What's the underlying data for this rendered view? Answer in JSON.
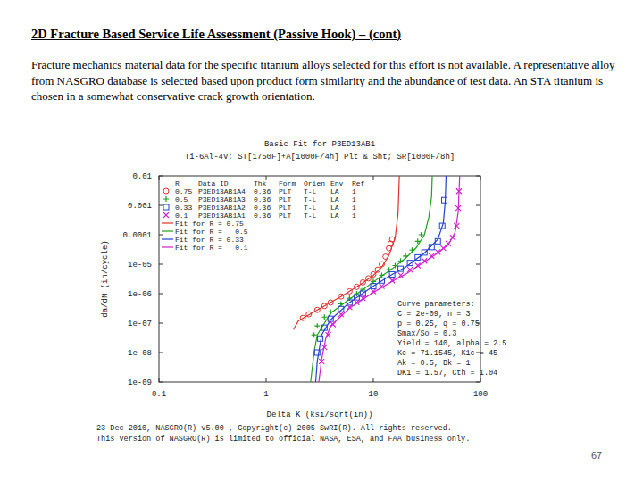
{
  "slide": {
    "heading": "2D Fracture Based Service Life Assessment (Passive Hook) – (cont)",
    "paragraph": "Fracture mechanics material data for the specific titanium alloys selected for this effort is not available.  A representative alloy from NASGRO database is selected based upon product form similarity and the abundance of test data.  An STA titanium is chosen in a somewhat conservative crack growth orientation.",
    "page_number": 67
  },
  "chart_data": {
    "type": "scatter",
    "title": "Basic Fit for P3ED13AB1",
    "subtitle": "Ti-6Al-4V; ST[1750F]+A[1000F/4h] Plt & Sht; SR[1000F/8h]",
    "x_label": "Delta K (ksi/sqrt(in))",
    "y_label": "da/dN (in/cycle)",
    "log": true,
    "grid": false,
    "legend": "upper left",
    "xlim": [
      0.1,
      100
    ],
    "ylim": [
      1e-09,
      0.01
    ],
    "xticks": [
      0.1,
      1,
      10,
      100
    ],
    "yticks": [
      0.01,
      0.001,
      0.0001,
      {
        "value": 1e-05,
        "label": "1e-05"
      },
      {
        "value": 1e-06,
        "label": "1e-06"
      },
      {
        "value": 1e-07,
        "label": "1e-07"
      },
      {
        "value": 1e-08,
        "label": "1e-08"
      },
      {
        "value": 1e-09,
        "label": "1e-09"
      }
    ],
    "legend_header": [
      "R",
      "Data ID",
      "Thk",
      "Form",
      "Orien",
      "Env",
      "Ref"
    ],
    "series": [
      {
        "name": "0.75",
        "legend_cells": [
          "P3ED13AB1A4",
          "0.36",
          "PLT",
          "T-L",
          "LA",
          "1"
        ],
        "type": "scatter",
        "marker": "circle",
        "color": "#e03030",
        "x": [
          2.2,
          2.5,
          3,
          3.5,
          4,
          5,
          6,
          7,
          8,
          9,
          10,
          11,
          12,
          13,
          14,
          14.5,
          15
        ],
        "values": [
          1.5e-07,
          2e-07,
          2.8e-07,
          3.8e-07,
          5e-07,
          8e-07,
          1.2e-06,
          1.7e-06,
          2.4e-06,
          3.3e-06,
          4.5e-06,
          6.5e-06,
          1e-05,
          1.8e-05,
          3.5e-05,
          5e-05,
          7e-05
        ]
      },
      {
        "name": "0.5",
        "legend_cells": [
          "P3ED13AB1A3",
          "0.36",
          "PLT",
          "T-L",
          "LA",
          "1"
        ],
        "type": "scatter",
        "marker": "plus",
        "color": "#20a020",
        "x": [
          2.8,
          3,
          3.5,
          4,
          5,
          6,
          7,
          8,
          10,
          12,
          14,
          16,
          18,
          20,
          23,
          26,
          28
        ],
        "values": [
          4e-08,
          8e-08,
          1.6e-07,
          2.4e-07,
          4.5e-07,
          7e-07,
          1e-06,
          1.4e-06,
          2.6e-06,
          4.2e-06,
          6.5e-06,
          9e-06,
          1.3e-05,
          1.9e-05,
          3e-05,
          6e-05,
          0.0001
        ]
      },
      {
        "name": "0.33",
        "legend_cells": [
          "P3ED13AB1A2",
          "0.36",
          "PLT",
          "T-L",
          "LA",
          "1"
        ],
        "type": "scatter",
        "marker": "square",
        "color": "#2040d0",
        "x": [
          3,
          3.2,
          3.5,
          4,
          5,
          6,
          7,
          8,
          10,
          12,
          15,
          18,
          22,
          26,
          30,
          35,
          40,
          44,
          46
        ],
        "values": [
          1e-08,
          3e-08,
          7e-08,
          1.4e-07,
          3e-07,
          5e-07,
          7.5e-07,
          1e-06,
          1.8e-06,
          2.8e-06,
          4.5e-06,
          7e-06,
          1.1e-05,
          1.7e-05,
          2.5e-05,
          3.8e-05,
          6e-05,
          0.0002,
          0.0015
        ]
      },
      {
        "name": "0.1",
        "legend_cells": [
          "P3ED13AB1A1",
          "0.36",
          "PLT",
          "T-L",
          "LA",
          "1"
        ],
        "type": "scatter",
        "marker": "x",
        "color": "#d020d0",
        "x": [
          3.3,
          3.5,
          3.8,
          4.2,
          5,
          6,
          7,
          8,
          10,
          12,
          15,
          18,
          22,
          26,
          30,
          35,
          40,
          45,
          50,
          55,
          60,
          62,
          63
        ],
        "values": [
          5e-09,
          1.5e-08,
          4e-08,
          9e-08,
          2e-07,
          3.5e-07,
          5e-07,
          7e-07,
          1.2e-06,
          1.8e-06,
          2.8e-06,
          4.2e-06,
          6.5e-06,
          9e-06,
          1.3e-05,
          1.9e-05,
          2.6e-05,
          3.5e-05,
          5e-05,
          8e-05,
          0.0002,
          0.0008,
          0.003
        ]
      },
      {
        "name": "Fit for R = 0.75",
        "type": "line",
        "line_style": "solid",
        "color": "#e03030",
        "x": [
          1.8,
          2,
          3,
          5,
          8,
          10,
          12,
          14,
          16,
          17,
          17.5
        ],
        "values": [
          6e-08,
          1.2e-07,
          2.8e-07,
          8e-07,
          2.3e-06,
          4.2e-06,
          8e-06,
          2e-05,
          8e-05,
          0.0005,
          0.01
        ]
      },
      {
        "name": "Fit for R =   0.5",
        "type": "line",
        "line_style": "solid",
        "color": "#20a020",
        "x": [
          2.6,
          2.8,
          3,
          4,
          6,
          10,
          15,
          20,
          25,
          30,
          33,
          35,
          35.5
        ],
        "values": [
          1e-09,
          1e-08,
          4e-08,
          2.2e-07,
          6.5e-07,
          2.5e-06,
          7e-06,
          1.6e-05,
          3.5e-05,
          0.0001,
          0.0004,
          0.002,
          0.01
        ]
      },
      {
        "name": "Fit for R = 0.33",
        "type": "line",
        "line_style": "solid",
        "color": "#2040d0",
        "x": [
          2.9,
          3,
          3.3,
          4,
          6,
          10,
          15,
          20,
          30,
          40,
          45,
          47,
          47.7
        ],
        "values": [
          1e-09,
          5e-09,
          4e-08,
          1.3e-07,
          5e-07,
          1.8e-06,
          4.5e-06,
          8e-06,
          2.4e-05,
          7e-05,
          0.00025,
          0.0015,
          0.01
        ]
      },
      {
        "name": "Fit for R =   0.1",
        "type": "line",
        "line_style": "solid",
        "color": "#d020d0",
        "x": [
          3.1,
          3.3,
          3.6,
          4,
          6,
          10,
          15,
          20,
          30,
          40,
          50,
          58,
          62,
          64
        ],
        "values": [
          1e-09,
          6e-09,
          3e-08,
          8e-08,
          3.2e-07,
          1.1e-06,
          2.6e-06,
          4.6e-06,
          1.2e-05,
          2.4e-05,
          4.5e-05,
          0.00012,
          0.0006,
          0.01
        ]
      }
    ],
    "annotations": [
      "Curve parameters:",
      "C = 2e-09, n = 3",
      "p = 0.25, q = 0.75",
      "Smax/So = 0.3",
      "Yield = 140, alpha = 2.5",
      "Kc = 71.1545, K1c = 45",
      "Ak = 0.5, Bk = 1",
      "DK1 = 1.57, Cth = 1.04"
    ],
    "footer": [
      "23 Dec 2010, NASGRO(R) v5.00 , Copyright(c) 2005 SwRI(R). All rights reserved.",
      "This version of NASGRO(R) is limited to official NASA, ESA, and FAA business only."
    ]
  }
}
